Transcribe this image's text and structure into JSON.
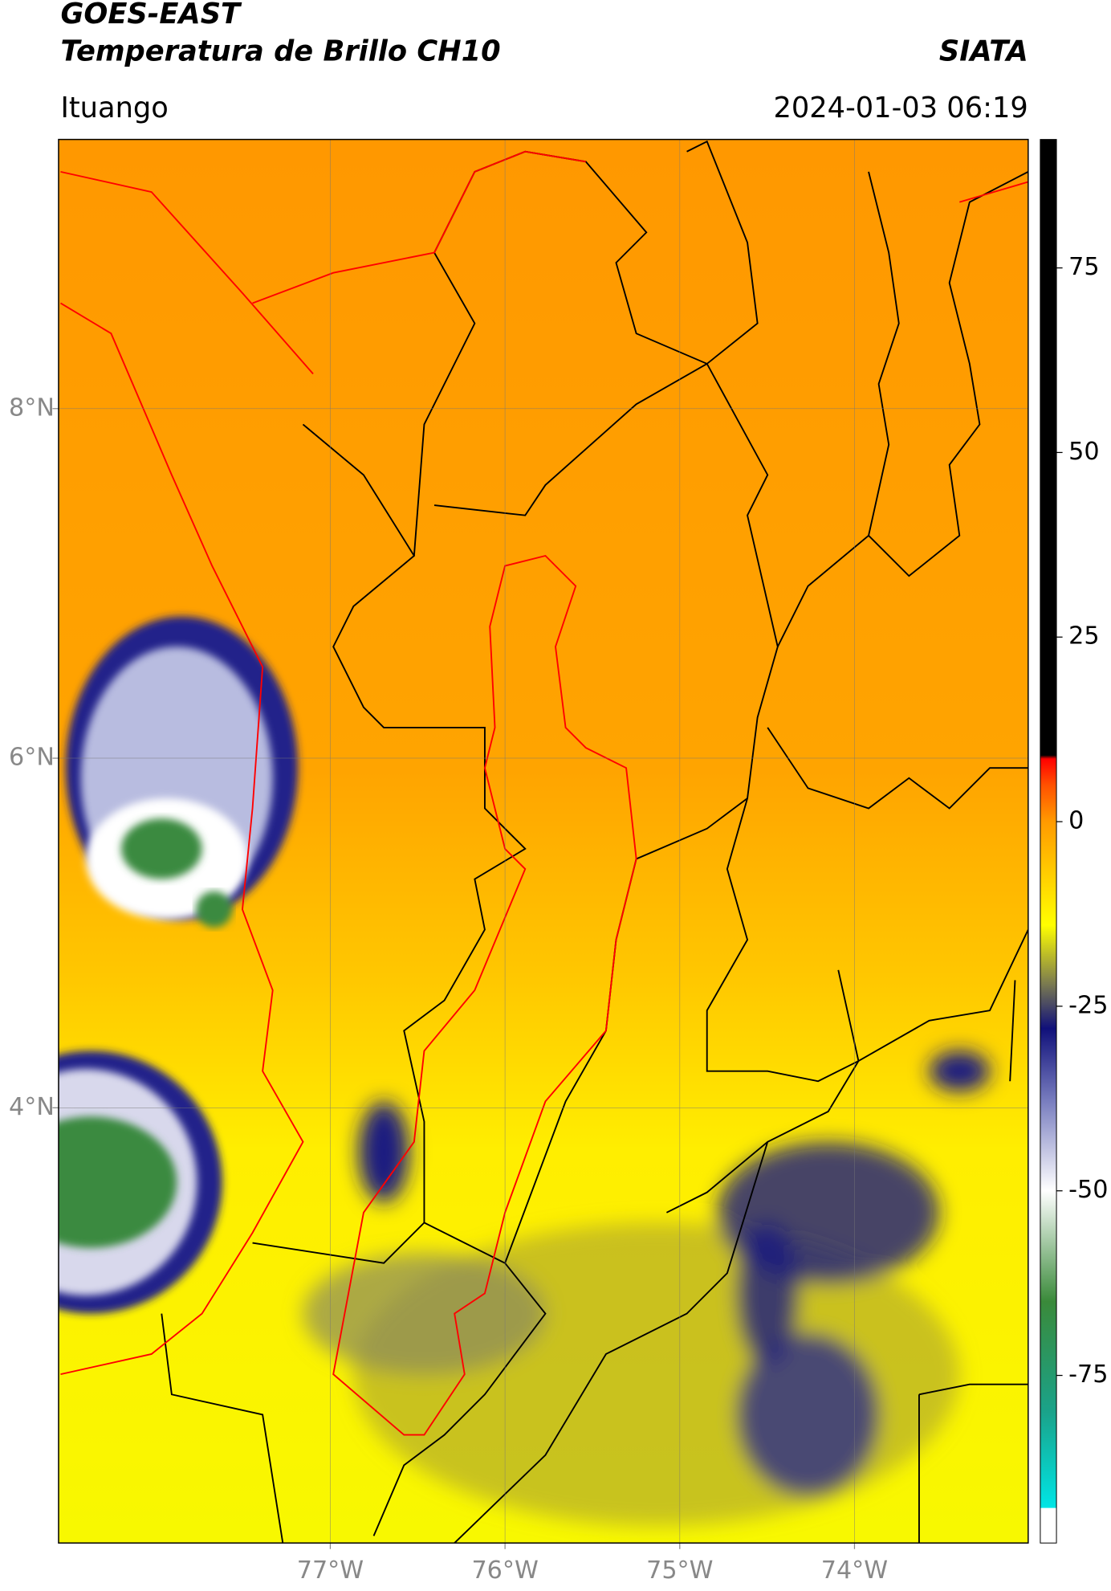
{
  "title": "GOES-EAST",
  "subtitle": "Temperatura de Brillo CH10",
  "credit": "SIATA",
  "location": "Ituango",
  "datetime": "2024-01-03 06:19",
  "map": {
    "xlim": [
      -78.555,
      -73.006
    ],
    "ylim": [
      1.51,
      9.54
    ],
    "xticks": [
      {
        "value": -77,
        "label": "77°W"
      },
      {
        "value": -76,
        "label": "76°W"
      },
      {
        "value": -75,
        "label": "75°W"
      },
      {
        "value": -74,
        "label": "74°W"
      }
    ],
    "yticks": [
      {
        "value": 8,
        "label": "8°N"
      },
      {
        "value": 6,
        "label": "6°N"
      },
      {
        "value": 4,
        "label": "4°N"
      }
    ],
    "grid": true
  },
  "colorbar": {
    "lim": [
      -97.7,
      92.4
    ],
    "ticks": [
      75,
      50,
      25,
      0,
      -25,
      -50,
      -75
    ],
    "colors": [
      {
        "value": -97.7,
        "color": "#ffffff"
      },
      {
        "value": -93,
        "color": "#ffffff"
      },
      {
        "value": -92.9,
        "color": "#00e5e5"
      },
      {
        "value": -80,
        "color": "#1aa38a"
      },
      {
        "value": -65,
        "color": "#3a8a3a"
      },
      {
        "value": -50,
        "color": "#ffffff"
      },
      {
        "value": -38,
        "color": "#7a7fc0"
      },
      {
        "value": -28,
        "color": "#10107a"
      },
      {
        "value": -22,
        "color": "#7a7a50"
      },
      {
        "value": -14,
        "color": "#ffff00"
      },
      {
        "value": 0,
        "color": "#ff9a00"
      },
      {
        "value": 5,
        "color": "#ff5000"
      },
      {
        "value": 8.5,
        "color": "#ff0000"
      },
      {
        "value": 9,
        "color": "#000000"
      },
      {
        "value": 92.4,
        "color": "#000000"
      }
    ]
  }
}
